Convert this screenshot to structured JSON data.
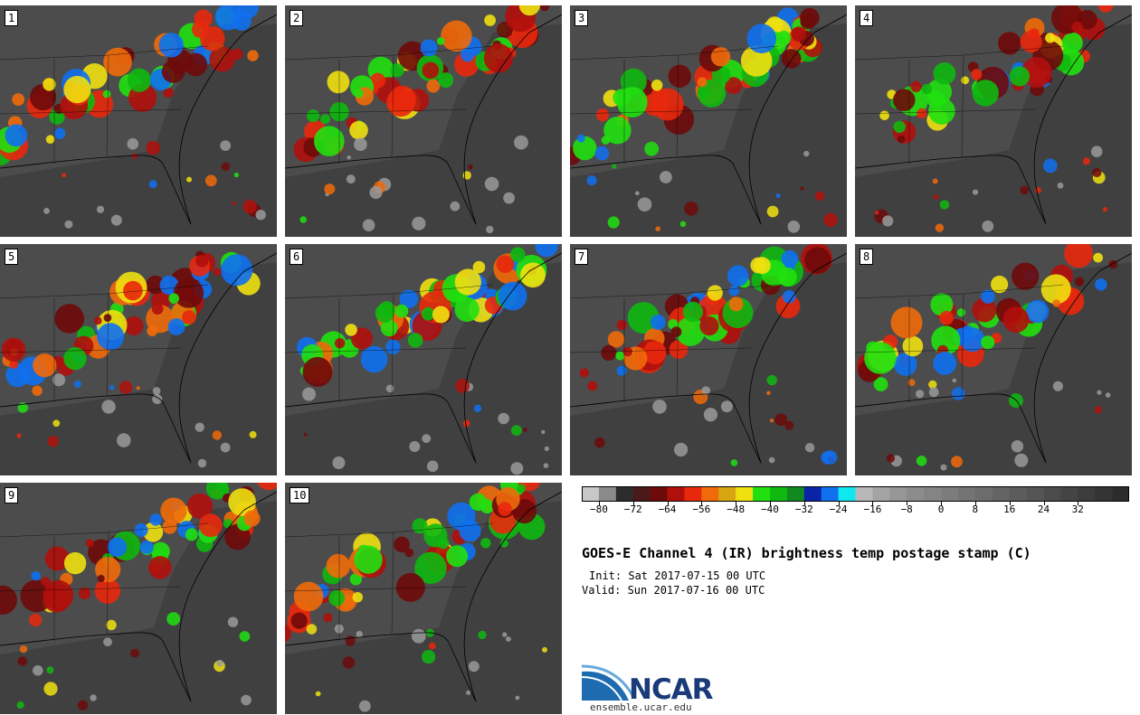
{
  "panels": [
    {
      "label": "1"
    },
    {
      "label": "2"
    },
    {
      "label": "3"
    },
    {
      "label": "4"
    },
    {
      "label": "5"
    },
    {
      "label": "6"
    },
    {
      "label": "7"
    },
    {
      "label": "8"
    },
    {
      "label": "9"
    },
    {
      "label": "10"
    }
  ],
  "colorbar": {
    "colors": [
      "#c8c8c8",
      "#8a8a8a",
      "#2c2c2c",
      "#4a1a1a",
      "#6e0a0a",
      "#b0100c",
      "#e8280c",
      "#f06a0a",
      "#d8a610",
      "#f0e010",
      "#20e010",
      "#10b810",
      "#108a20",
      "#0a24a8",
      "#1070f0",
      "#10e8f0",
      "#b8b8b8",
      "#a4a4a4",
      "#969696",
      "#8c8c8c",
      "#848484",
      "#7c7c7c",
      "#747474",
      "#6c6c6c",
      "#646464",
      "#5c5c5c",
      "#545454",
      "#4c4c4c",
      "#444444",
      "#3c3c3c",
      "#343434",
      "#2c2c2c"
    ],
    "ticks": [
      "−80",
      "−72",
      "−64",
      "−56",
      "−48",
      "−40",
      "−32",
      "−24",
      "−16",
      "−8",
      "0",
      "8",
      "16",
      "24",
      "32"
    ]
  },
  "title": "GOES-E Channel 4 (IR) brightness temp postage stamp (C)",
  "init": "Init: Sat 2017-07-15 00 UTC",
  "valid": "Valid: Sun 2017-07-16 00 UTC",
  "logo_text": "NCAR",
  "website": "ensemble.ucar.edu"
}
